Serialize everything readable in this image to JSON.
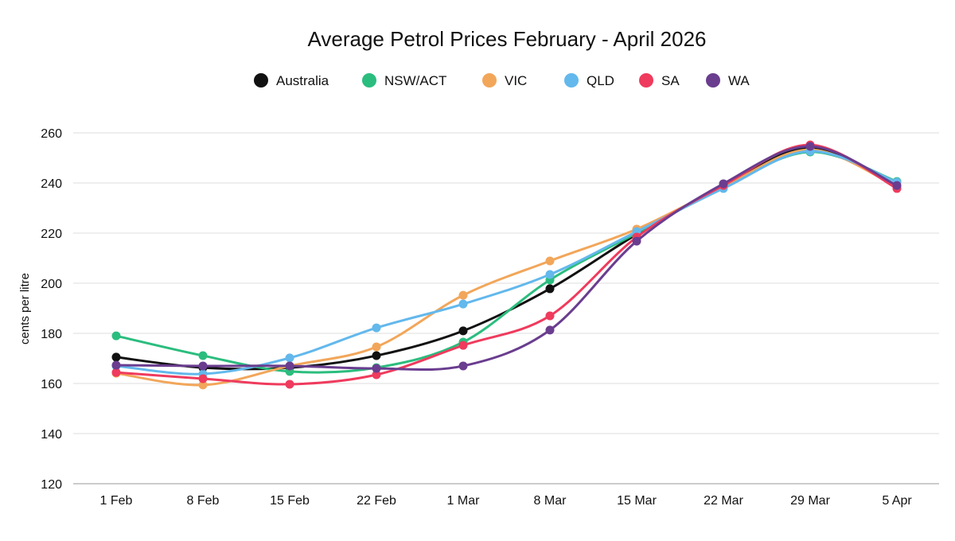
{
  "chart_data": {
    "type": "line",
    "title": "Average Petrol Prices February - April 2026",
    "xlabel": "",
    "ylabel": "cents per litre",
    "ylim": [
      120,
      260
    ],
    "yticks": [
      120,
      140,
      160,
      180,
      200,
      220,
      240,
      260
    ],
    "grid": "horizontal",
    "legend": "top",
    "categories": [
      "1 Feb",
      "8 Feb",
      "15 Feb",
      "22 Feb",
      "1 Mar",
      "8 Mar",
      "15 Mar",
      "22 Mar",
      "29 Mar",
      "5 Apr"
    ],
    "series": [
      {
        "name": "Australia",
        "color": "#111111",
        "values": [
          170.5,
          166.3,
          166.3,
          171.1,
          181.0,
          197.8,
          219.5,
          238.5,
          254.0,
          238.7
        ]
      },
      {
        "name": "NSW/ACT",
        "color": "#2bbd7e",
        "values": [
          179.0,
          171.1,
          164.8,
          166.3,
          176.5,
          201.3,
          220.0,
          238.3,
          252.4,
          240.6
        ]
      },
      {
        "name": "VIC",
        "color": "#f2a65a",
        "values": [
          164.1,
          159.4,
          167.0,
          174.6,
          195.2,
          208.9,
          221.6,
          238.5,
          253.3,
          238.4
        ]
      },
      {
        "name": "QLD",
        "color": "#63b8ec",
        "values": [
          167.0,
          163.8,
          170.2,
          182.2,
          191.7,
          203.5,
          220.6,
          237.8,
          252.7,
          240.3
        ]
      },
      {
        "name": "SA",
        "color": "#ef3b5d",
        "values": [
          164.4,
          161.9,
          159.7,
          163.5,
          175.2,
          187.0,
          218.4,
          239.0,
          255.2,
          237.8
        ]
      },
      {
        "name": "WA",
        "color": "#6a3d8f",
        "values": [
          167.3,
          167.0,
          167.0,
          166.0,
          167.0,
          181.3,
          216.8,
          239.7,
          254.6,
          239.0
        ]
      }
    ]
  }
}
